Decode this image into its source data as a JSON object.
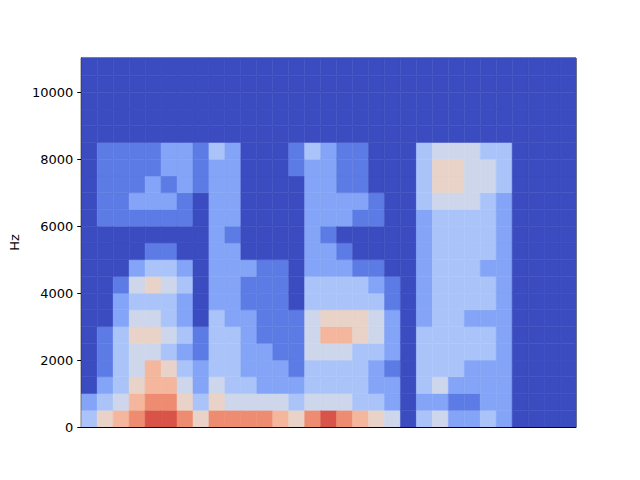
{
  "chart_data": {
    "type": "heatmap",
    "ylabel": "Hz",
    "tick_labels": "y",
    "xlim": [
      0,
      31
    ],
    "ylim": [
      0,
      11025
    ],
    "yticks": [
      0,
      2000,
      4000,
      6000,
      8000,
      10000
    ],
    "x_edges": [
      0,
      1,
      2,
      3,
      4,
      5,
      6,
      7,
      8,
      9,
      10,
      11,
      12,
      13,
      14,
      15,
      16,
      17,
      18,
      19,
      20,
      21,
      22,
      23,
      24,
      25,
      26,
      27,
      28,
      29,
      30,
      31
    ],
    "y_edges": [
      0,
      500,
      1000,
      1500,
      2000,
      2500,
      3000,
      3500,
      4000,
      4500,
      5000,
      5500,
      6000,
      6500,
      7000,
      7500,
      8000,
      8500,
      9000,
      9500,
      10000,
      10500,
      11000,
      11025
    ],
    "zlim": [
      0,
      9
    ],
    "cells": [
      [
        3,
        2,
        0,
        0,
        0,
        0,
        0,
        0,
        0,
        0,
        0,
        0,
        0,
        0,
        0,
        0,
        0,
        0,
        0,
        0,
        0,
        0,
        0
      ],
      [
        5,
        3,
        2,
        1,
        1,
        1,
        0,
        0,
        0,
        0,
        0,
        0,
        1,
        1,
        1,
        1,
        1,
        0,
        0,
        0,
        0,
        0,
        0
      ],
      [
        6,
        4,
        3,
        3,
        3,
        3,
        2,
        2,
        1,
        0,
        0,
        0,
        1,
        1,
        1,
        1,
        1,
        0,
        0,
        0,
        0,
        0,
        0
      ],
      [
        7,
        6,
        5,
        4,
        4,
        5,
        4,
        3,
        4,
        2,
        0,
        0,
        1,
        2,
        1,
        1,
        1,
        0,
        0,
        0,
        0,
        0,
        0
      ],
      [
        8,
        7,
        6,
        6,
        4,
        5,
        4,
        3,
        5,
        3,
        1,
        0,
        1,
        2,
        2,
        1,
        1,
        0,
        0,
        0,
        0,
        0,
        0
      ],
      [
        8,
        7,
        6,
        5,
        3,
        4,
        3,
        3,
        4,
        3,
        1,
        0,
        1,
        2,
        1,
        2,
        2,
        0,
        0,
        0,
        0,
        0,
        0
      ],
      [
        7,
        5,
        4,
        3,
        2,
        3,
        2,
        2,
        3,
        2,
        0,
        0,
        1,
        1,
        2,
        2,
        2,
        0,
        0,
        0,
        0,
        0,
        0
      ],
      [
        5,
        3,
        2,
        2,
        1,
        1,
        0,
        0,
        0,
        0,
        0,
        0,
        0,
        0,
        1,
        1,
        1,
        0,
        0,
        0,
        0,
        0,
        0
      ],
      [
        7,
        5,
        4,
        3,
        3,
        3,
        3,
        2,
        2,
        2,
        2,
        2,
        2,
        2,
        2,
        2,
        3,
        0,
        0,
        0,
        0,
        0,
        0
      ],
      [
        7,
        4,
        3,
        3,
        3,
        3,
        2,
        2,
        2,
        2,
        2,
        1,
        2,
        2,
        2,
        2,
        2,
        0,
        0,
        0,
        0,
        0,
        0
      ],
      [
        7,
        4,
        3,
        2,
        2,
        2,
        2,
        1,
        1,
        2,
        0,
        0,
        0,
        0,
        0,
        0,
        0,
        0,
        0,
        0,
        0,
        0,
        0
      ],
      [
        7,
        4,
        2,
        2,
        2,
        1,
        1,
        1,
        1,
        1,
        0,
        0,
        0,
        0,
        0,
        0,
        0,
        0,
        0,
        0,
        0,
        0,
        0
      ],
      [
        6,
        4,
        2,
        2,
        1,
        1,
        1,
        1,
        1,
        1,
        0,
        0,
        0,
        0,
        0,
        0,
        0,
        0,
        0,
        0,
        0,
        0,
        0
      ],
      [
        5,
        3,
        2,
        1,
        1,
        1,
        1,
        0,
        0,
        0,
        0,
        0,
        0,
        0,
        0,
        1,
        1,
        0,
        0,
        0,
        0,
        0,
        0
      ],
      [
        7,
        4,
        3,
        3,
        4,
        4,
        4,
        3,
        3,
        2,
        2,
        2,
        2,
        2,
        2,
        2,
        3,
        0,
        0,
        0,
        0,
        0,
        0
      ],
      [
        8,
        4,
        3,
        3,
        4,
        6,
        5,
        3,
        3,
        2,
        2,
        1,
        2,
        2,
        2,
        2,
        2,
        0,
        0,
        0,
        0,
        0,
        0
      ],
      [
        7,
        4,
        3,
        3,
        4,
        6,
        5,
        3,
        3,
        2,
        1,
        0,
        2,
        2,
        1,
        1,
        1,
        0,
        0,
        0,
        0,
        0,
        0
      ],
      [
        6,
        3,
        3,
        3,
        3,
        5,
        5,
        3,
        3,
        1,
        0,
        0,
        1,
        2,
        1,
        1,
        1,
        0,
        0,
        0,
        0,
        0,
        0
      ],
      [
        5,
        3,
        2,
        2,
        3,
        4,
        4,
        3,
        2,
        1,
        0,
        0,
        1,
        1,
        0,
        0,
        0,
        0,
        0,
        0,
        0,
        0,
        0
      ],
      [
        4,
        2,
        2,
        1,
        2,
        2,
        2,
        1,
        1,
        0,
        0,
        0,
        0,
        0,
        0,
        0,
        0,
        0,
        0,
        0,
        0,
        0,
        0
      ],
      [
        0,
        0,
        0,
        0,
        0,
        0,
        0,
        0,
        0,
        0,
        0,
        0,
        0,
        0,
        0,
        0,
        0,
        0,
        0,
        0,
        0,
        0,
        0
      ],
      [
        3,
        2,
        3,
        3,
        3,
        3,
        2,
        2,
        2,
        2,
        2,
        2,
        2,
        3,
        3,
        3,
        3,
        0,
        0,
        0,
        0,
        0,
        0
      ],
      [
        4,
        2,
        4,
        3,
        3,
        3,
        3,
        3,
        3,
        3,
        3,
        3,
        3,
        4,
        5,
        5,
        4,
        0,
        0,
        0,
        0,
        0,
        0
      ],
      [
        2,
        1,
        2,
        3,
        3,
        3,
        3,
        3,
        3,
        3,
        3,
        3,
        3,
        4,
        5,
        5,
        4,
        0,
        0,
        0,
        0,
        0,
        0
      ],
      [
        2,
        1,
        2,
        2,
        3,
        3,
        2,
        3,
        3,
        3,
        3,
        3,
        3,
        4,
        4,
        4,
        4,
        0,
        0,
        0,
        0,
        0,
        0
      ],
      [
        3,
        2,
        2,
        2,
        3,
        3,
        2,
        3,
        3,
        2,
        3,
        3,
        3,
        3,
        4,
        4,
        3,
        0,
        0,
        0,
        0,
        0,
        0
      ],
      [
        2,
        2,
        2,
        2,
        2,
        2,
        2,
        2,
        2,
        2,
        2,
        2,
        2,
        2,
        3,
        3,
        3,
        0,
        0,
        0,
        0,
        0,
        0
      ],
      [
        0,
        0,
        0,
        0,
        0,
        0,
        0,
        0,
        0,
        0,
        0,
        0,
        0,
        0,
        0,
        0,
        0,
        0,
        0,
        0,
        0,
        0,
        0
      ],
      [
        0,
        0,
        0,
        0,
        0,
        0,
        0,
        0,
        0,
        0,
        0,
        0,
        0,
        0,
        0,
        0,
        0,
        0,
        0,
        0,
        0,
        0,
        0
      ],
      [
        0,
        0,
        0,
        0,
        0,
        0,
        0,
        0,
        0,
        0,
        0,
        0,
        0,
        0,
        0,
        0,
        0,
        0,
        0,
        0,
        0,
        0,
        0
      ],
      [
        0,
        0,
        0,
        0,
        0,
        0,
        0,
        0,
        0,
        0,
        0,
        0,
        0,
        0,
        0,
        0,
        0,
        0,
        0,
        0,
        0,
        0,
        0
      ]
    ]
  }
}
